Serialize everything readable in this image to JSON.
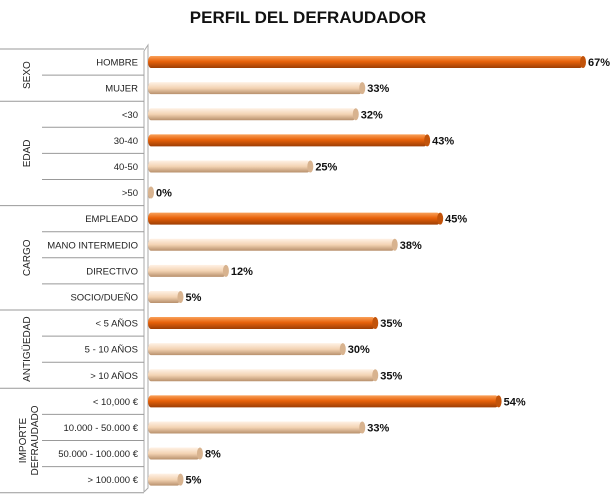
{
  "chart_data": {
    "type": "bar",
    "orientation": "horizontal",
    "title": "PERFIL DEL DEFRAUDADOR",
    "xlim": [
      0,
      70
    ],
    "value_suffix": "%",
    "colors": {
      "highlight": "#E8620A",
      "normal": "#F3D3B3"
    },
    "groups": [
      {
        "name": "SEXO",
        "categories": [
          "HOMBRE",
          "MUJER"
        ],
        "values": [
          67,
          33
        ],
        "highlight": [
          true,
          false
        ]
      },
      {
        "name": "EDAD",
        "categories": [
          "<30",
          "30-40",
          "40-50",
          ">50"
        ],
        "values": [
          32,
          43,
          25,
          0
        ],
        "highlight": [
          false,
          true,
          false,
          false
        ]
      },
      {
        "name": "CARGO",
        "categories": [
          "EMPLEADO",
          "MANO INTERMEDIO",
          "DIRECTIVO",
          "SOCIO/DUEÑO"
        ],
        "values": [
          45,
          38,
          12,
          5
        ],
        "highlight": [
          true,
          false,
          false,
          false
        ]
      },
      {
        "name": "ANTIGÜEDAD",
        "categories": [
          "< 5 AÑOS",
          "5 - 10 AÑOS",
          "> 10 AÑOS"
        ],
        "values": [
          35,
          30,
          35
        ],
        "highlight": [
          true,
          false,
          false
        ]
      },
      {
        "name": "IMPORTE DEFRAUDADO",
        "categories": [
          "< 10,000 €",
          "10.000 - 50.000 €",
          "50.000 - 100.000 €",
          "> 100.000 €"
        ],
        "values": [
          54,
          33,
          8,
          5
        ],
        "highlight": [
          true,
          false,
          false,
          false
        ]
      }
    ]
  }
}
